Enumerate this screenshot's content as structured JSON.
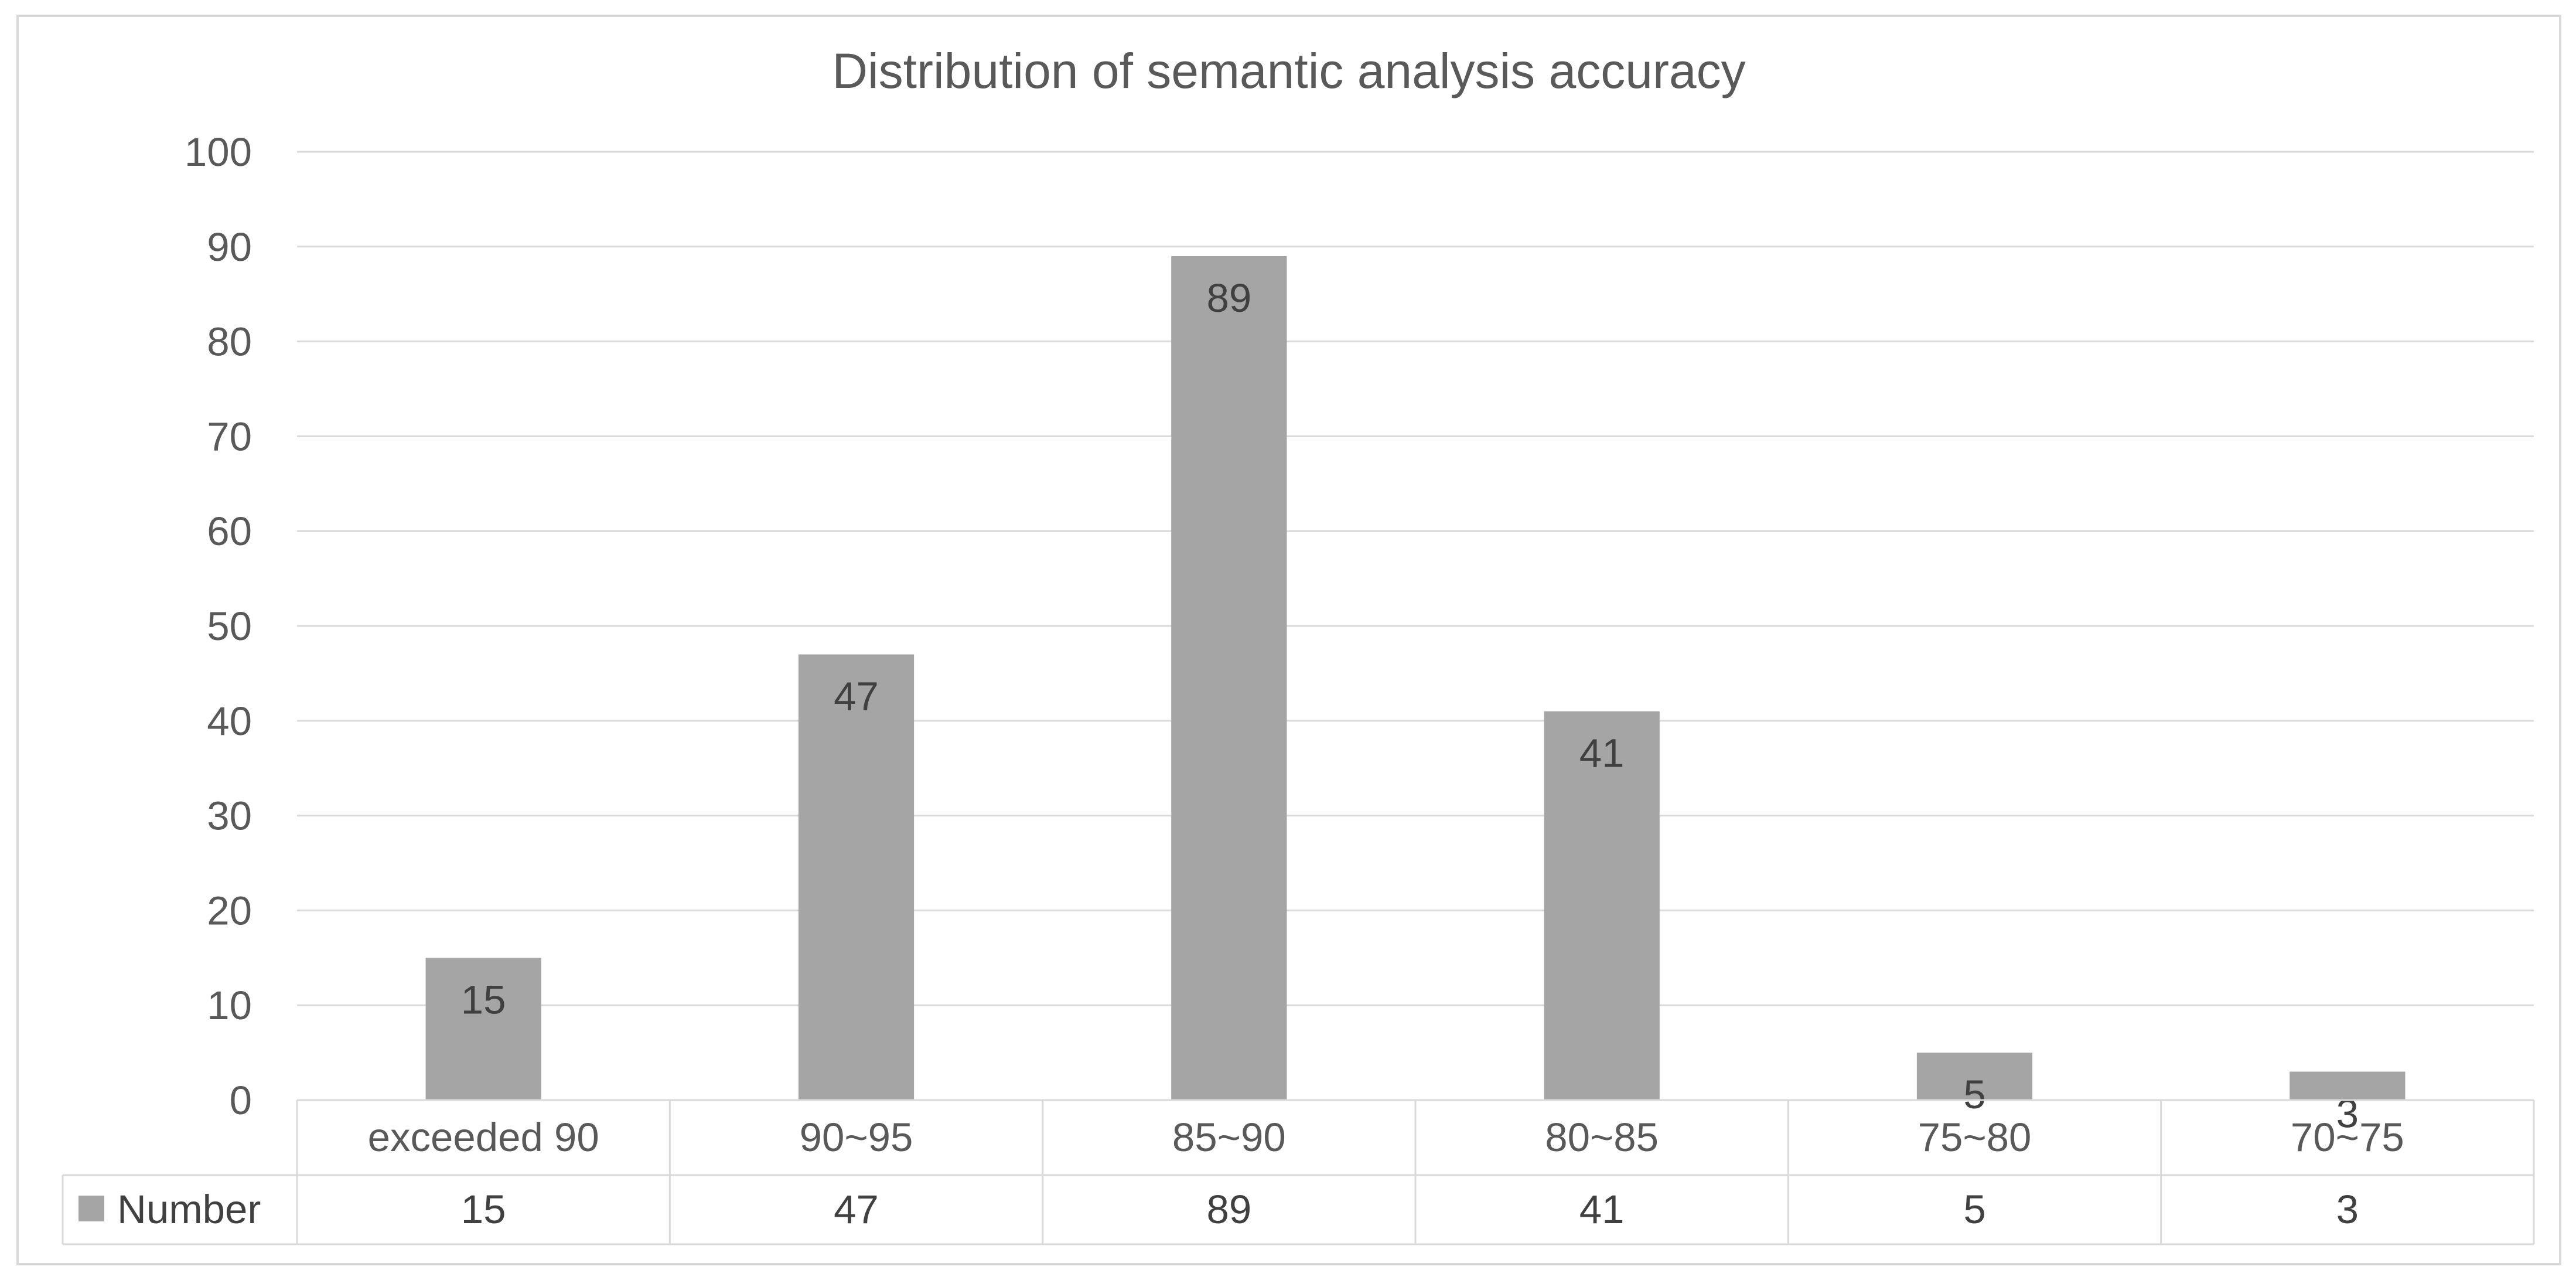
{
  "chart_data": {
    "type": "bar",
    "title": "Distribution of semantic analysis accuracy",
    "categories": [
      "exceeded 90",
      "90~95",
      "85~90",
      "80~85",
      "75~80",
      "70~75"
    ],
    "series": [
      {
        "name": "Number",
        "values": [
          15,
          47,
          89,
          41,
          5,
          3
        ],
        "color": "#a5a5a5"
      }
    ],
    "ylim": [
      0,
      100
    ],
    "yticks": [
      0,
      10,
      20,
      30,
      40,
      50,
      60,
      70,
      80,
      90,
      100
    ],
    "grid": true,
    "data_labels": true,
    "data_table": true,
    "legend": "data-table"
  }
}
